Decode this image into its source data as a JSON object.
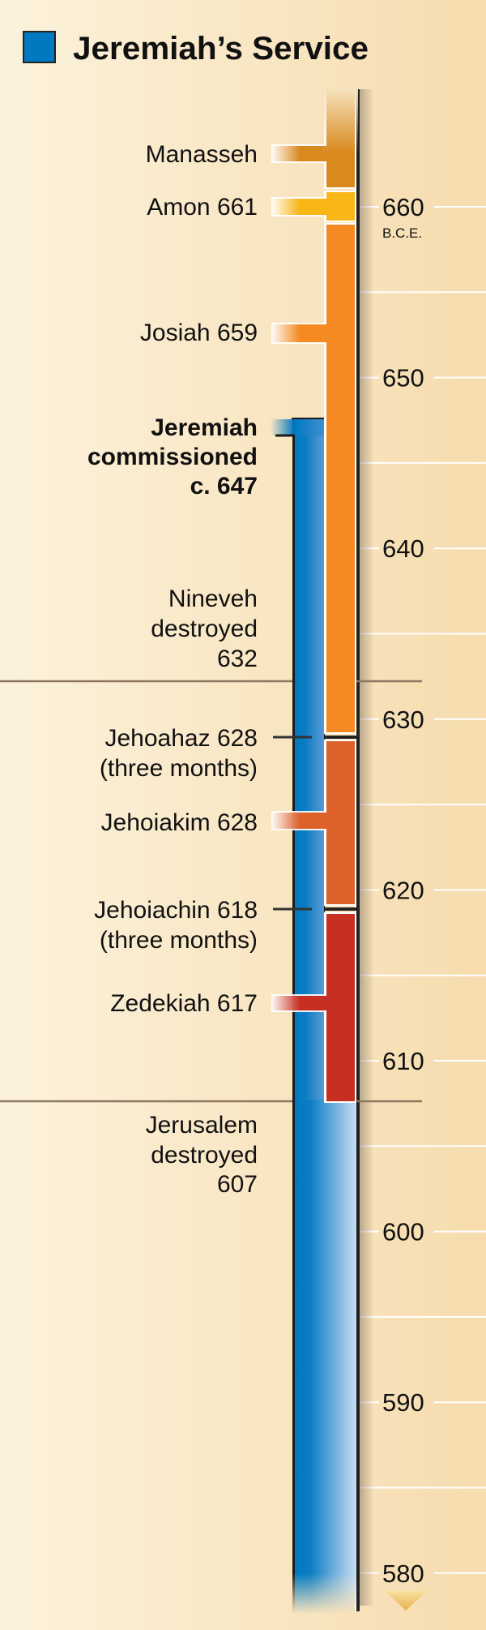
{
  "title": "Jeremiah’s Service",
  "legend_color": "#0079c1",
  "axis": {
    "unit": "B.C.E.",
    "labeled_ticks": [
      "660",
      "650",
      "640",
      "630",
      "620",
      "610",
      "600",
      "590",
      "580"
    ],
    "minor_tick_step_years": 5
  },
  "reigns": [
    {
      "label": [
        "Manasseh"
      ],
      "color": "#d98a1f"
    },
    {
      "label": [
        "Amon 661"
      ],
      "start": 661,
      "color": "#f8b617"
    },
    {
      "label": [
        "Josiah 659"
      ],
      "start": 659,
      "color": "#f48a21"
    },
    {
      "label": [
        "Jehoahaz 628",
        "(three months)"
      ],
      "start": 628
    },
    {
      "label": [
        "Jehoiakim 628"
      ],
      "start": 628,
      "color": "#dc622a"
    },
    {
      "label": [
        "Jehoiachin 618",
        "(three months)"
      ],
      "start": 618
    },
    {
      "label": [
        "Zedekiah 617"
      ],
      "start": 617,
      "color": "#c82f23"
    }
  ],
  "jeremiah": {
    "label": [
      "Jeremiah",
      "commissioned",
      "c. 647"
    ],
    "start": 647,
    "color": "#0079c1"
  },
  "events": [
    {
      "label": [
        "Nineveh",
        "destroyed",
        "632"
      ],
      "year": 632
    },
    {
      "label": [
        "Jerusalem",
        "destroyed",
        "607"
      ],
      "year": 607
    }
  ]
}
